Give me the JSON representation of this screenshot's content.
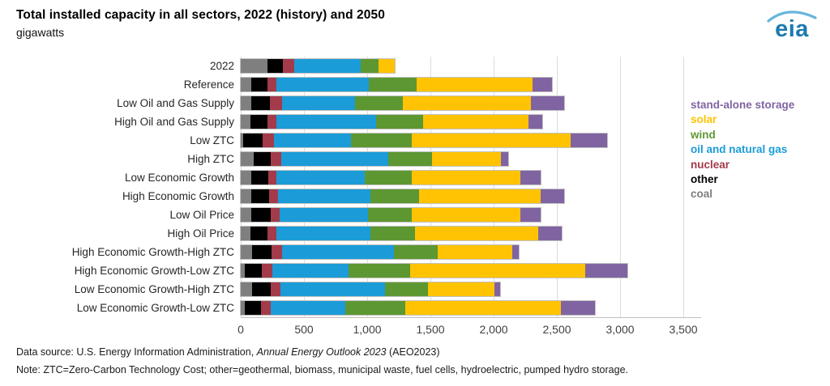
{
  "header": {
    "title": "Total installed capacity in all sectors, 2022 (history) and 2050",
    "subtitle": "gigawatts",
    "logo_text": "eia"
  },
  "chart_data": {
    "type": "bar",
    "orientation": "horizontal-stacked",
    "title": "Total installed capacity in all sectors, 2022 (history) and 2050",
    "unit": "gigawatts",
    "xlabel": "",
    "ylabel": "",
    "xlim": [
      0,
      3500
    ],
    "x_ticks": [
      "0",
      "500",
      "1,000",
      "1,500",
      "2,000",
      "2,500",
      "3,000",
      "3,500"
    ],
    "grid": true,
    "legend_position": "right",
    "categories": [
      "2022",
      "Reference",
      "Low Oil and Gas Supply",
      "High Oil and Gas Supply",
      "Low ZTC",
      "High ZTC",
      "Low Economic Growth",
      "High Economic Growth",
      "Low Oil Price",
      "High Oil Price",
      "High Economic Growth-High ZTC",
      "High Economic Growth-Low ZTC",
      "Low Economic Growth-High ZTC",
      "Low Economic Growth-Low ZTC"
    ],
    "series": [
      {
        "name": "coal",
        "color": "#7f7f7f",
        "values": [
          210,
          85,
          85,
          80,
          20,
          100,
          85,
          85,
          85,
          80,
          90,
          30,
          90,
          30
        ]
      },
      {
        "name": "other",
        "color": "#000000",
        "values": [
          125,
          125,
          145,
          130,
          150,
          140,
          135,
          140,
          150,
          130,
          155,
          135,
          145,
          130
        ]
      },
      {
        "name": "nuclear",
        "color": "#a33b4b",
        "values": [
          85,
          75,
          100,
          70,
          95,
          80,
          60,
          70,
          70,
          70,
          80,
          85,
          80,
          75
        ]
      },
      {
        "name": "oil and natural gas",
        "color": "#1b9cd8",
        "values": [
          530,
          730,
          575,
          790,
          610,
          850,
          700,
          730,
          700,
          745,
          885,
          605,
          825,
          590
        ]
      },
      {
        "name": "wind",
        "color": "#5d9732",
        "values": [
          140,
          375,
          380,
          370,
          480,
          345,
          375,
          385,
          350,
          355,
          345,
          485,
          340,
          475
        ]
      },
      {
        "name": "solar",
        "color": "#ffc303",
        "values": [
          125,
          920,
          1010,
          835,
          1255,
          540,
          855,
          965,
          860,
          970,
          590,
          1385,
          525,
          1230
        ]
      },
      {
        "name": "stand-alone storage",
        "color": "#8064a2",
        "values": [
          0,
          150,
          260,
          110,
          285,
          60,
          160,
          180,
          160,
          190,
          55,
          335,
          45,
          270
        ]
      }
    ],
    "totals_estimated": [
      1215,
      2460,
      2555,
      2385,
      2895,
      2115,
      2370,
      2555,
      2375,
      2540,
      2200,
      3060,
      2050,
      2800
    ]
  },
  "legend": {
    "items": [
      {
        "label": "stand-alone storage",
        "color": "#8064a2"
      },
      {
        "label": "solar",
        "color": "#ffc303"
      },
      {
        "label": "wind",
        "color": "#5d9732"
      },
      {
        "label": "oil and natural gas",
        "color": "#1b9cd8"
      },
      {
        "label": "nuclear",
        "color": "#a33b4b"
      },
      {
        "label": "other",
        "color": "#000000"
      },
      {
        "label": "coal",
        "color": "#7f7f7f"
      }
    ]
  },
  "footer": {
    "source_prefix": "Data source: U.S. Energy Information Administration, ",
    "source_italic": "Annual Energy Outlook 2023",
    "source_suffix": " (AEO2023)",
    "note": "Note: ZTC=Zero-Carbon Technology Cost; other=geothermal, biomass, municipal waste, fuel cells, hydroelectric, pumped hydro storage."
  }
}
